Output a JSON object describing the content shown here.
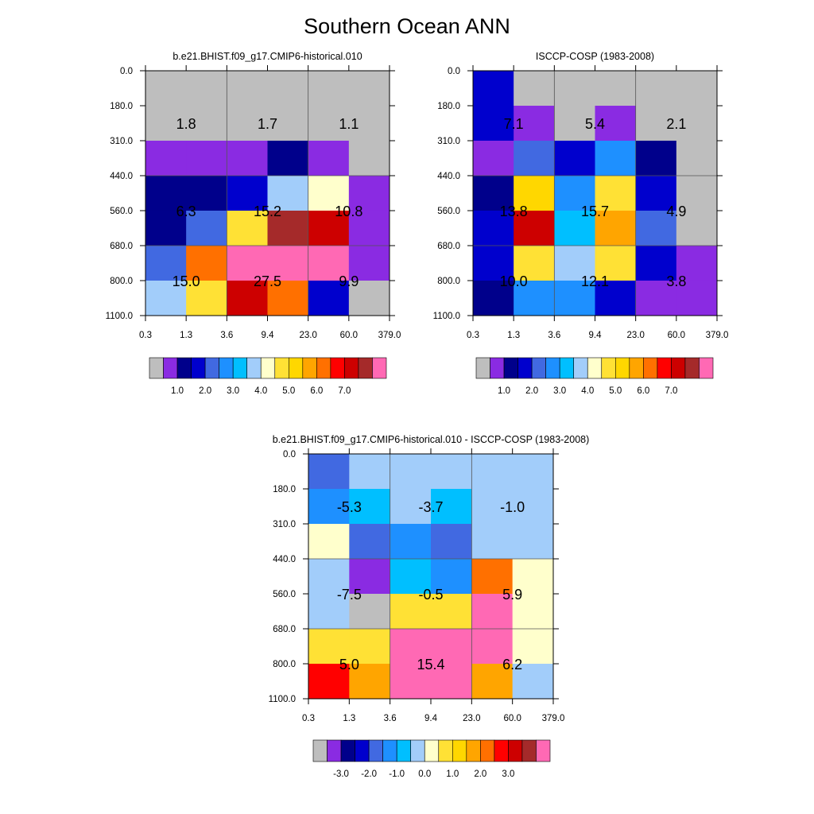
{
  "title": "Southern Ocean ANN",
  "chart_data": [
    {
      "type": "heatmap",
      "title": "b.e21.BHIST.f09_g17.CMIP6-historical.010",
      "x_tick_labels": [
        "0.3",
        "1.3",
        "3.6",
        "9.4",
        "23.0",
        "60.0",
        "379.0"
      ],
      "y_tick_labels": [
        "0.0",
        "180.0",
        "310.0",
        "440.0",
        "560.0",
        "680.0",
        "800.0",
        "1100.0"
      ],
      "colorbar_labels": [
        "1.0",
        "2.0",
        "3.0",
        "4.0",
        "5.0",
        "6.0",
        "7.0"
      ],
      "cell_color_index": [
        [
          0,
          0,
          0,
          0,
          0,
          0
        ],
        [
          0,
          0,
          0,
          0,
          0,
          0
        ],
        [
          1,
          1,
          1,
          2,
          1,
          0
        ],
        [
          2,
          2,
          3,
          7,
          8,
          1
        ],
        [
          2,
          4,
          9,
          15,
          14,
          1
        ],
        [
          4,
          12,
          17,
          18,
          17,
          1
        ],
        [
          7,
          9,
          14,
          12,
          3,
          0
        ]
      ],
      "annotations": [
        {
          "row": 0,
          "col": 0,
          "text": "1.8"
        },
        {
          "row": 0,
          "col": 1,
          "text": "1.7"
        },
        {
          "row": 0,
          "col": 2,
          "text": "1.1"
        },
        {
          "row": 1,
          "col": 0,
          "text": "6.3"
        },
        {
          "row": 1,
          "col": 1,
          "text": "15.2"
        },
        {
          "row": 1,
          "col": 2,
          "text": "10.8"
        },
        {
          "row": 2,
          "col": 0,
          "text": "15.0"
        },
        {
          "row": 2,
          "col": 1,
          "text": "27.5"
        },
        {
          "row": 2,
          "col": 2,
          "text": "9.9"
        }
      ]
    },
    {
      "type": "heatmap",
      "title": "ISCCP-COSP (1983-2008)",
      "x_tick_labels": [
        "0.3",
        "1.3",
        "3.6",
        "9.4",
        "23.0",
        "60.0",
        "379.0"
      ],
      "y_tick_labels": [
        "0.0",
        "180.0",
        "310.0",
        "440.0",
        "560.0",
        "680.0",
        "800.0",
        "1100.0"
      ],
      "colorbar_labels": [
        "1.0",
        "2.0",
        "3.0",
        "4.0",
        "5.0",
        "6.0",
        "7.0"
      ],
      "cell_color_index": [
        [
          3,
          0,
          0,
          0,
          0,
          0
        ],
        [
          3,
          1,
          0,
          1,
          0,
          0
        ],
        [
          1,
          4,
          3,
          5,
          2,
          0
        ],
        [
          2,
          10,
          5,
          9,
          3,
          0
        ],
        [
          3,
          14,
          6,
          11,
          4,
          0
        ],
        [
          3,
          9,
          7,
          9,
          3,
          1
        ],
        [
          2,
          5,
          5,
          3,
          1,
          1
        ]
      ],
      "annotations": [
        {
          "row": 0,
          "col": 0,
          "text": "7.1"
        },
        {
          "row": 0,
          "col": 1,
          "text": "5.4"
        },
        {
          "row": 0,
          "col": 2,
          "text": "2.1"
        },
        {
          "row": 1,
          "col": 0,
          "text": "13.8"
        },
        {
          "row": 1,
          "col": 1,
          "text": "15.7"
        },
        {
          "row": 1,
          "col": 2,
          "text": "4.9"
        },
        {
          "row": 2,
          "col": 0,
          "text": "10.0"
        },
        {
          "row": 2,
          "col": 1,
          "text": "12.1"
        },
        {
          "row": 2,
          "col": 2,
          "text": "3.8"
        }
      ]
    },
    {
      "type": "heatmap",
      "title": "b.e21.BHIST.f09_g17.CMIP6-historical.010 - ISCCP-COSP (1983-2008)",
      "x_tick_labels": [
        "0.3",
        "1.3",
        "3.6",
        "9.4",
        "23.0",
        "60.0",
        "379.0"
      ],
      "y_tick_labels": [
        "0.0",
        "180.0",
        "310.0",
        "440.0",
        "560.0",
        "680.0",
        "800.0",
        "1100.0"
      ],
      "colorbar_labels": [
        "-3.0",
        "-2.0",
        "-1.0",
        "0.0",
        "1.0",
        "2.0",
        "3.0"
      ],
      "cell_color_index": [
        [
          4,
          7,
          7,
          7,
          7,
          7
        ],
        [
          5,
          6,
          7,
          6,
          7,
          7
        ],
        [
          8,
          4,
          5,
          4,
          7,
          7
        ],
        [
          7,
          1,
          6,
          5,
          12,
          8
        ],
        [
          7,
          0,
          9,
          9,
          18,
          8
        ],
        [
          9,
          9,
          18,
          18,
          18,
          8
        ],
        [
          13,
          11,
          16,
          16,
          11,
          7
        ]
      ],
      "annotations": [
        {
          "row": 0,
          "col": 0,
          "text": "-5.3"
        },
        {
          "row": 0,
          "col": 1,
          "text": "-3.7"
        },
        {
          "row": 0,
          "col": 2,
          "text": "-1.0"
        },
        {
          "row": 1,
          "col": 0,
          "text": "-7.5"
        },
        {
          "row": 1,
          "col": 1,
          "text": "-0.5"
        },
        {
          "row": 1,
          "col": 2,
          "text": "5.9"
        },
        {
          "row": 2,
          "col": 0,
          "text": "5.0"
        },
        {
          "row": 2,
          "col": 1,
          "text": "15.4"
        },
        {
          "row": 2,
          "col": 2,
          "text": "6.2"
        }
      ]
    }
  ],
  "colors": {
    "palette": [
      "#bebebe",
      "#8a2be2",
      "#00008b",
      "#0000cd",
      "#4169e1",
      "#1e90ff",
      "#00bfff",
      "#a2cdfa",
      "#ffffcc",
      "#ffe135",
      "#ffd700",
      "#ffa500",
      "#ff7000",
      "#ff0000",
      "#cd0000",
      "#a52a2a",
      "#ff69b4",
      "#ff69b4",
      "#ff69b4"
    ],
    "colorbar": [
      "#bebebe",
      "#8a2be2",
      "#00008b",
      "#0000cd",
      "#4169e1",
      "#1e90ff",
      "#00bfff",
      "#a2cdfa",
      "#ffffcc",
      "#ffe135",
      "#ffd700",
      "#ffa500",
      "#ff7000",
      "#ff0000",
      "#cd0000",
      "#a52a2a",
      "#ff69b4"
    ]
  }
}
